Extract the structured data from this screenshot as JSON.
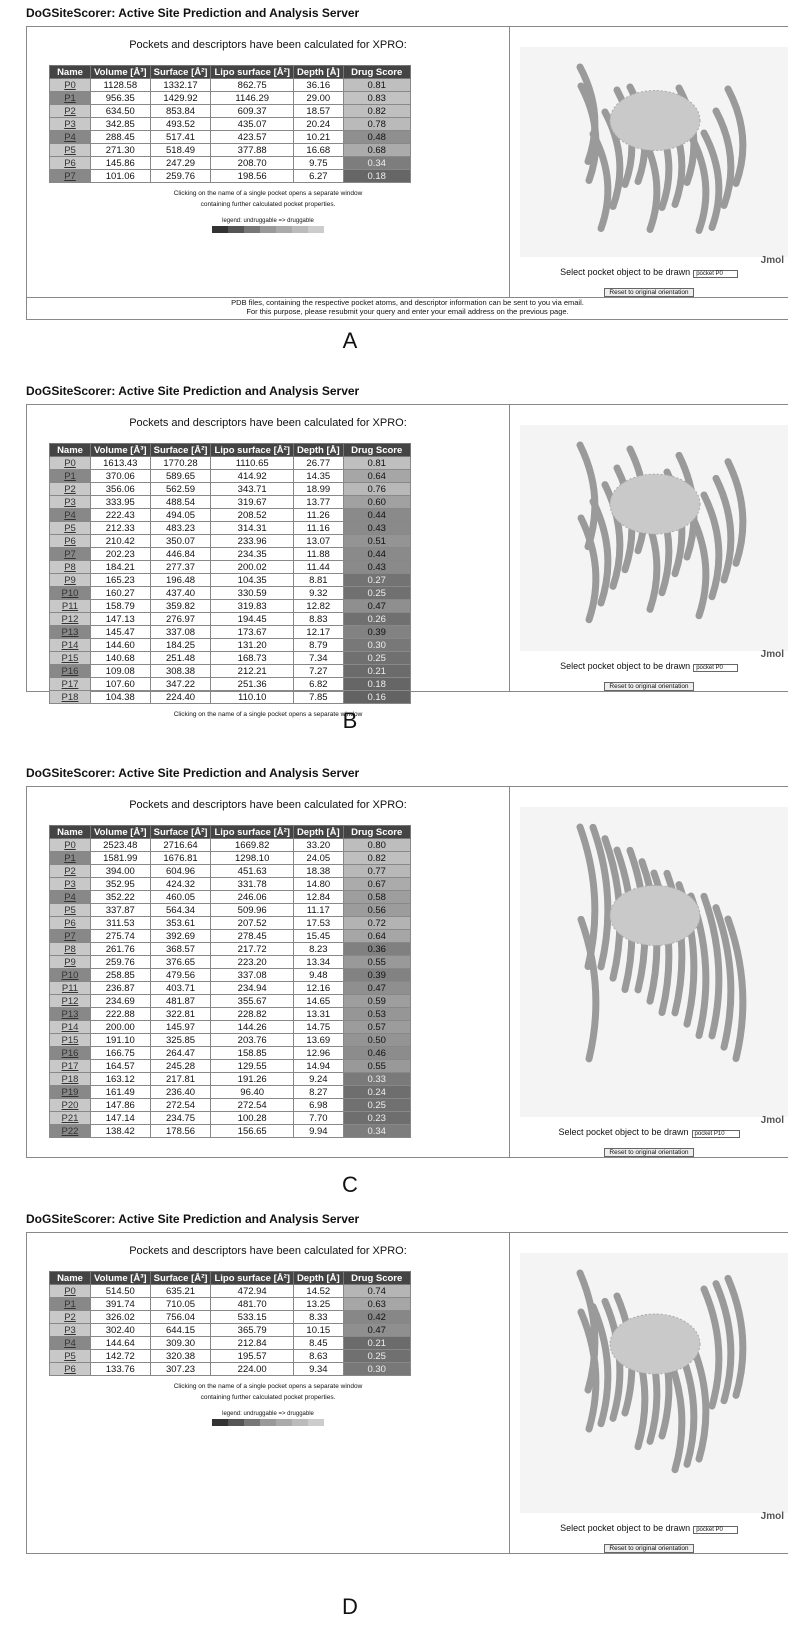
{
  "panels": [
    {
      "label": "A",
      "header": "DoGSiteScorer: Active Site Prediction and Analysis Server",
      "intro": "Pockets and descriptors have been calculated for XPRO:",
      "columns": [
        "Name",
        "Volume [Å³]",
        "Surface [Å²]",
        "Lipo surface [Å²]",
        "Depth [Å]",
        "Drug Score"
      ],
      "rows": [
        [
          "P0",
          "1128.58",
          "1332.17",
          "862.75",
          "36.16",
          "0.81"
        ],
        [
          "P1",
          "956.35",
          "1429.92",
          "1146.29",
          "29.00",
          "0.83"
        ],
        [
          "P2",
          "634.50",
          "853.84",
          "609.37",
          "18.57",
          "0.82"
        ],
        [
          "P3",
          "342.85",
          "493.52",
          "435.07",
          "20.24",
          "0.78"
        ],
        [
          "P4",
          "288.45",
          "517.41",
          "423.57",
          "10.21",
          "0.48"
        ],
        [
          "P5",
          "271.30",
          "518.49",
          "377.88",
          "16.68",
          "0.68"
        ],
        [
          "P6",
          "145.86",
          "247.29",
          "208.70",
          "9.75",
          "0.34"
        ],
        [
          "P7",
          "101.06",
          "259.76",
          "198.56",
          "6.27",
          "0.18"
        ]
      ],
      "notes": [
        "Clicking on the name of a single pocket opens a separate window",
        "containing further calculated pocket properties."
      ],
      "legend": "legend: undruggable => druggable",
      "jmol": "Jmol",
      "select_label": "Select pocket object to be drawn",
      "select_value": "pocket P0",
      "reset": "Reset to original orientation",
      "footer": [
        "PDB files, containing the respective pocket atoms, and descriptor information can be sent to you via email.",
        "For this purpose, please resubmit your query and enter your email address on the previous page."
      ]
    },
    {
      "label": "B",
      "header": "DoGSiteScorer: Active Site Prediction and Analysis Server",
      "intro": "Pockets and descriptors have been calculated for XPRO:",
      "columns": [
        "Name",
        "Volume [Å³]",
        "Surface [Å²]",
        "Lipo surface [Å²]",
        "Depth [Å]",
        "Drug Score"
      ],
      "rows": [
        [
          "P0",
          "1613.43",
          "1770.28",
          "1110.65",
          "26.77",
          "0.81"
        ],
        [
          "P1",
          "370.06",
          "589.65",
          "414.92",
          "14.35",
          "0.64"
        ],
        [
          "P2",
          "356.06",
          "562.59",
          "343.71",
          "18.99",
          "0.76"
        ],
        [
          "P3",
          "333.95",
          "488.54",
          "319.67",
          "13.77",
          "0.60"
        ],
        [
          "P4",
          "222.43",
          "494.05",
          "208.52",
          "11.26",
          "0.44"
        ],
        [
          "P5",
          "212.33",
          "483.23",
          "314.31",
          "11.16",
          "0.43"
        ],
        [
          "P6",
          "210.42",
          "350.07",
          "233.96",
          "13.07",
          "0.51"
        ],
        [
          "P7",
          "202.23",
          "446.84",
          "234.35",
          "11.88",
          "0.44"
        ],
        [
          "P8",
          "184.21",
          "277.37",
          "200.02",
          "11.44",
          "0.43"
        ],
        [
          "P9",
          "165.23",
          "196.48",
          "104.35",
          "8.81",
          "0.27"
        ],
        [
          "P10",
          "160.27",
          "437.40",
          "330.59",
          "9.32",
          "0.25"
        ],
        [
          "P11",
          "158.79",
          "359.82",
          "319.83",
          "12.82",
          "0.47"
        ],
        [
          "P12",
          "147.13",
          "276.97",
          "194.45",
          "8.83",
          "0.26"
        ],
        [
          "P13",
          "145.47",
          "337.08",
          "173.67",
          "12.17",
          "0.39"
        ],
        [
          "P14",
          "144.60",
          "184.25",
          "131.20",
          "8.79",
          "0.30"
        ],
        [
          "P15",
          "140.68",
          "251.48",
          "168.73",
          "7.34",
          "0.25"
        ],
        [
          "P16",
          "109.08",
          "308.38",
          "212.21",
          "7.27",
          "0.21"
        ],
        [
          "P17",
          "107.60",
          "347.22",
          "251.36",
          "6.82",
          "0.18"
        ],
        [
          "P18",
          "104.38",
          "224.40",
          "110.10",
          "7.85",
          "0.16"
        ]
      ],
      "notes": [
        "Clicking on the name of a single pocket opens a separate window"
      ],
      "jmol": "Jmol",
      "select_label": "Select pocket object to be drawn",
      "select_value": "pocket P0",
      "reset": "Reset to original orientation"
    },
    {
      "label": "C",
      "header": "DoGSiteScorer: Active Site Prediction and Analysis Server",
      "intro": "Pockets and descriptors have been calculated for XPRO:",
      "columns": [
        "Name",
        "Volume [Å³]",
        "Surface [Å²]",
        "Lipo surface [Å²]",
        "Depth [Å]",
        "Drug Score"
      ],
      "rows": [
        [
          "P0",
          "2523.48",
          "2716.64",
          "1669.82",
          "33.20",
          "0.80"
        ],
        [
          "P1",
          "1581.99",
          "1676.81",
          "1298.10",
          "24.05",
          "0.82"
        ],
        [
          "P2",
          "394.00",
          "604.96",
          "451.63",
          "18.38",
          "0.77"
        ],
        [
          "P3",
          "352.95",
          "424.32",
          "331.78",
          "14.80",
          "0.67"
        ],
        [
          "P4",
          "352.22",
          "460.05",
          "246.06",
          "12.84",
          "0.58"
        ],
        [
          "P5",
          "337.87",
          "564.34",
          "509.96",
          "11.17",
          "0.56"
        ],
        [
          "P6",
          "311.53",
          "353.61",
          "207.52",
          "17.53",
          "0.72"
        ],
        [
          "P7",
          "275.74",
          "392.69",
          "278.45",
          "15.45",
          "0.64"
        ],
        [
          "P8",
          "261.76",
          "368.57",
          "217.72",
          "8.23",
          "0.36"
        ],
        [
          "P9",
          "259.76",
          "376.65",
          "223.20",
          "13.34",
          "0.55"
        ],
        [
          "P10",
          "258.85",
          "479.56",
          "337.08",
          "9.48",
          "0.39"
        ],
        [
          "P11",
          "236.87",
          "403.71",
          "234.94",
          "12.16",
          "0.47"
        ],
        [
          "P12",
          "234.69",
          "481.87",
          "355.67",
          "14.65",
          "0.59"
        ],
        [
          "P13",
          "222.88",
          "322.81",
          "228.82",
          "13.31",
          "0.53"
        ],
        [
          "P14",
          "200.00",
          "145.97",
          "144.26",
          "14.75",
          "0.57"
        ],
        [
          "P15",
          "191.10",
          "325.85",
          "203.76",
          "13.69",
          "0.50"
        ],
        [
          "P16",
          "166.75",
          "264.47",
          "158.85",
          "12.96",
          "0.46"
        ],
        [
          "P17",
          "164.57",
          "245.28",
          "129.55",
          "14.94",
          "0.55"
        ],
        [
          "P18",
          "163.12",
          "217.81",
          "191.26",
          "9.24",
          "0.33"
        ],
        [
          "P19",
          "161.49",
          "236.40",
          "96.40",
          "8.27",
          "0.24"
        ],
        [
          "P20",
          "147.86",
          "272.54",
          "272.54",
          "6.98",
          "0.25"
        ],
        [
          "P21",
          "147.14",
          "234.75",
          "100.28",
          "7.70",
          "0.23"
        ],
        [
          "P22",
          "138.42",
          "178.56",
          "156.65",
          "9.94",
          "0.34"
        ]
      ],
      "jmol": "Jmol",
      "select_label": "Select pocket object to be drawn",
      "select_value": "pocket P10",
      "reset": "Reset to original orientation"
    },
    {
      "label": "D",
      "header": "DoGSiteScorer: Active Site Prediction and Analysis Server",
      "intro": "Pockets and descriptors have been calculated for XPRO:",
      "columns": [
        "Name",
        "Volume [Å³]",
        "Surface [Å²]",
        "Lipo surface [Å²]",
        "Depth [Å]",
        "Drug Score"
      ],
      "rows": [
        [
          "P0",
          "514.50",
          "635.21",
          "472.94",
          "14.52",
          "0.74"
        ],
        [
          "P1",
          "391.74",
          "710.05",
          "481.70",
          "13.25",
          "0.63"
        ],
        [
          "P2",
          "326.02",
          "756.04",
          "533.15",
          "8.33",
          "0.42"
        ],
        [
          "P3",
          "302.40",
          "644.15",
          "365.79",
          "10.15",
          "0.47"
        ],
        [
          "P4",
          "144.64",
          "309.30",
          "212.84",
          "8.45",
          "0.21"
        ],
        [
          "P5",
          "142.72",
          "320.38",
          "195.57",
          "8.63",
          "0.25"
        ],
        [
          "P6",
          "133.76",
          "307.23",
          "224.00",
          "9.34",
          "0.30"
        ]
      ],
      "notes": [
        "Clicking on the name of a single pocket opens a separate window",
        "containing further calculated pocket properties."
      ],
      "legend": "legend: undruggable => druggable",
      "jmol": "Jmol",
      "select_label": "Select pocket object to be drawn",
      "select_value": "pocket P0",
      "reset": "Reset to original orientation"
    }
  ]
}
